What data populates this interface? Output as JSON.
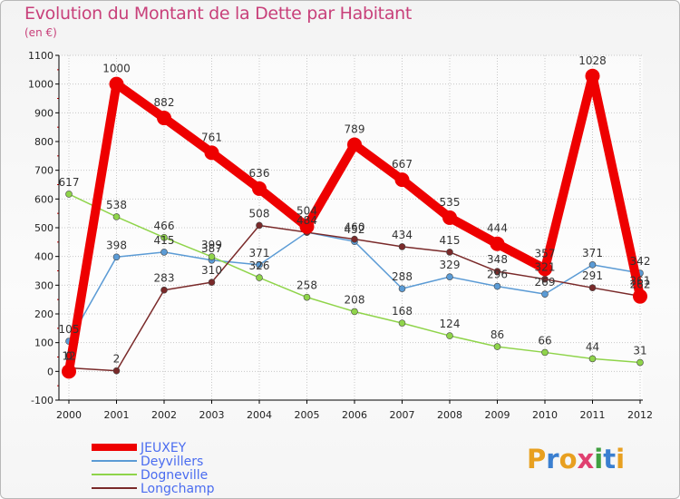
{
  "page": {
    "title": "Evolution du Montant de la Dette par Habitant",
    "subtitle": "(en €)",
    "logo_text": "Proxiti"
  },
  "colors": {
    "title": "#c8407a",
    "axis": "#000000",
    "grid": "#c8c8c8",
    "legend_text": "#4a6cf0"
  },
  "chart_data": {
    "type": "line",
    "x": [
      "2000",
      "2001",
      "2002",
      "2003",
      "2004",
      "2005",
      "2006",
      "2007",
      "2008",
      "2009",
      "2010",
      "2011",
      "2012"
    ],
    "ylim": [
      -100,
      1100
    ],
    "yticks": [
      -100,
      0,
      100,
      200,
      300,
      400,
      500,
      600,
      700,
      800,
      900,
      1000,
      1100
    ],
    "grid": true,
    "legend_position": "bottom-left",
    "series": [
      {
        "name": "JEUXEY",
        "color": "#ee0000",
        "width": 10,
        "marker": 8,
        "values": [
          0,
          1000,
          882,
          761,
          636,
          504,
          789,
          667,
          535,
          444,
          357,
          1028,
          261
        ],
        "labels": [
          "0",
          "1000",
          "882",
          "761",
          "636",
          "504",
          "789",
          "667",
          "535",
          "444",
          "357",
          "1028",
          "261"
        ]
      },
      {
        "name": "Deyvillers",
        "color": "#5b9bd5",
        "width": 1.5,
        "marker": 3.5,
        "values": [
          105,
          398,
          415,
          387,
          371,
          484,
          452,
          288,
          329,
          296,
          269,
          371,
          342
        ],
        "labels": [
          "105",
          "398",
          "415",
          "387",
          "371",
          "484",
          "452",
          "288",
          "329",
          "296",
          "269",
          "371",
          "342"
        ]
      },
      {
        "name": "Dogneville",
        "color": "#8fd44a",
        "width": 1.5,
        "marker": 3.5,
        "values": [
          617,
          538,
          466,
          399,
          326,
          258,
          208,
          168,
          124,
          86,
          66,
          44,
          31
        ],
        "labels": [
          "617",
          "538",
          "466",
          "399",
          "326",
          "258",
          "208",
          "168",
          "124",
          "86",
          "66",
          "44",
          "31"
        ]
      },
      {
        "name": "Longchamp",
        "color": "#7a2a2a",
        "width": 1.5,
        "marker": 3.5,
        "values": [
          12,
          2,
          283,
          310,
          508,
          484,
          460,
          434,
          415,
          348,
          321,
          291,
          262
        ],
        "labels": [
          "12",
          "2",
          "283",
          "310",
          "508",
          "",
          "460",
          "434",
          "415",
          "348",
          "321",
          "291",
          "262"
        ]
      }
    ]
  }
}
